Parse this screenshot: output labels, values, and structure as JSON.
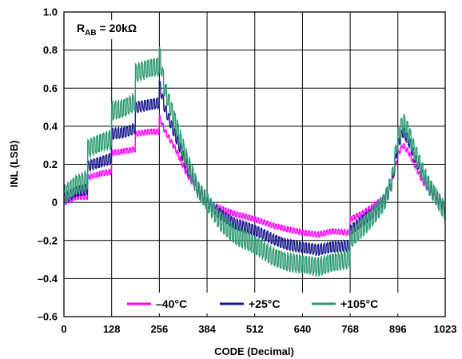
{
  "chart_data": {
    "type": "line",
    "title": "",
    "xlabel": "CODE (Decimal)",
    "ylabel": "INL (LSB)",
    "xlim": [
      0,
      1023
    ],
    "ylim": [
      -0.6,
      1.0
    ],
    "grid": true,
    "legend_position": "bottom-center",
    "annotation": {
      "main": "R",
      "sub": "AB",
      "rest": " = 20kΩ"
    },
    "x_ticks": [
      0,
      128,
      256,
      384,
      512,
      640,
      768,
      896,
      1023
    ],
    "x_tick_labels": [
      "0",
      "128",
      "256",
      "384",
      "512",
      "640",
      "768",
      "896",
      "1023"
    ],
    "y_ticks": [
      -0.6,
      -0.4,
      -0.2,
      0,
      0.2,
      0.4,
      0.6,
      0.8,
      1.0
    ],
    "y_tick_labels": [
      "–0.6",
      "–0.4",
      "–0.2",
      "0",
      "0.2",
      "0.4",
      "0.6",
      "0.8",
      "1.0"
    ],
    "series": [
      {
        "name": "–40°C",
        "color": "#ff00ff",
        "x": [
          0,
          32,
          63,
          64,
          100,
          127,
          128,
          160,
          191,
          192,
          230,
          255,
          256,
          270,
          300,
          330,
          360,
          384,
          420,
          460,
          512,
          560,
          600,
          640,
          680,
          720,
          767,
          768,
          800,
          830,
          860,
          880,
          896,
          910,
          925,
          940,
          960,
          980,
          1000,
          1023
        ],
        "y": [
          0.0,
          0.03,
          0.03,
          0.13,
          0.15,
          0.16,
          0.26,
          0.27,
          0.28,
          0.36,
          0.37,
          0.37,
          0.45,
          0.38,
          0.28,
          0.15,
          0.06,
          0.0,
          -0.03,
          -0.06,
          -0.09,
          -0.12,
          -0.14,
          -0.16,
          -0.17,
          -0.15,
          -0.16,
          -0.09,
          -0.06,
          -0.02,
          0.03,
          0.1,
          0.25,
          0.3,
          0.26,
          0.2,
          0.12,
          0.06,
          0.02,
          -0.02
        ]
      },
      {
        "name": "+25°C",
        "color": "#1a1a8c",
        "x": [
          0,
          32,
          63,
          64,
          100,
          127,
          128,
          160,
          191,
          192,
          230,
          255,
          256,
          270,
          300,
          330,
          360,
          384,
          420,
          460,
          512,
          560,
          600,
          640,
          680,
          720,
          767,
          768,
          800,
          830,
          860,
          880,
          896,
          910,
          925,
          940,
          960,
          980,
          1000,
          1023
        ],
        "y": [
          0.02,
          0.06,
          0.07,
          0.19,
          0.21,
          0.23,
          0.36,
          0.37,
          0.39,
          0.5,
          0.51,
          0.52,
          0.62,
          0.5,
          0.35,
          0.19,
          0.06,
          0.0,
          -0.06,
          -0.11,
          -0.15,
          -0.19,
          -0.22,
          -0.24,
          -0.25,
          -0.23,
          -0.23,
          -0.15,
          -0.1,
          -0.05,
          0.02,
          0.1,
          0.3,
          0.37,
          0.32,
          0.24,
          0.15,
          0.08,
          0.03,
          -0.03
        ]
      },
      {
        "name": "+105°C",
        "color": "#2e9c72",
        "x": [
          0,
          32,
          63,
          64,
          100,
          127,
          128,
          160,
          191,
          192,
          230,
          255,
          256,
          270,
          300,
          330,
          360,
          384,
          420,
          460,
          512,
          560,
          600,
          640,
          680,
          720,
          767,
          768,
          800,
          830,
          860,
          880,
          896,
          910,
          925,
          940,
          960,
          980,
          1000,
          1023
        ],
        "y": [
          0.04,
          0.1,
          0.12,
          0.28,
          0.31,
          0.33,
          0.48,
          0.5,
          0.53,
          0.68,
          0.7,
          0.71,
          0.78,
          0.6,
          0.42,
          0.22,
          0.06,
          0.0,
          -0.1,
          -0.17,
          -0.23,
          -0.28,
          -0.31,
          -0.33,
          -0.34,
          -0.31,
          -0.3,
          -0.2,
          -0.14,
          -0.07,
          0.01,
          0.12,
          0.34,
          0.42,
          0.36,
          0.27,
          0.17,
          0.09,
          0.03,
          -0.05
        ]
      }
    ]
  }
}
